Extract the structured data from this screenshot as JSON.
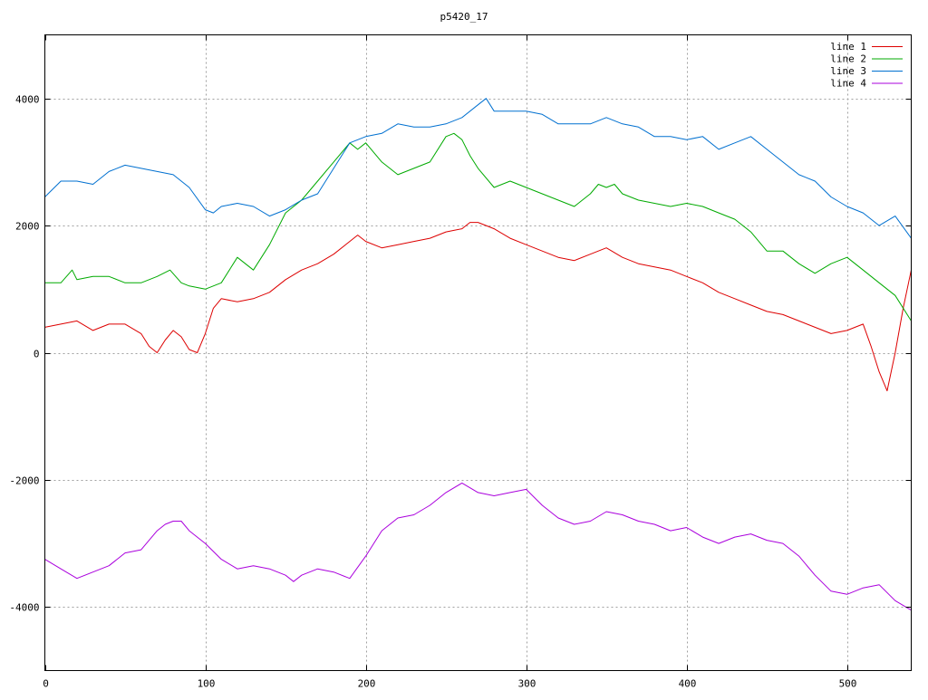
{
  "chart_data": {
    "type": "line",
    "title": "p5420_17",
    "xlabel": "",
    "ylabel": "",
    "xlim": [
      0,
      540
    ],
    "ylim": [
      -5000,
      5000
    ],
    "xticks": [
      0,
      100,
      200,
      300,
      400,
      500
    ],
    "yticks": [
      -4000,
      -2000,
      0,
      2000,
      4000
    ],
    "xtick_labels": [
      "0",
      "100",
      "200",
      "300",
      "400",
      "500"
    ],
    "ytick_labels": [
      "-4000",
      "-2000",
      "0",
      "2000",
      "4000"
    ],
    "grid": true,
    "legend": "top-right",
    "series": [
      {
        "name": "line 1",
        "color": "#dd0000",
        "x": [
          0,
          10,
          20,
          30,
          40,
          50,
          60,
          65,
          70,
          75,
          80,
          85,
          90,
          95,
          100,
          105,
          110,
          120,
          130,
          140,
          150,
          160,
          170,
          180,
          190,
          195,
          200,
          210,
          220,
          230,
          240,
          250,
          260,
          265,
          270,
          275,
          280,
          290,
          300,
          310,
          320,
          330,
          340,
          350,
          360,
          370,
          380,
          390,
          400,
          410,
          420,
          430,
          440,
          450,
          460,
          470,
          480,
          490,
          500,
          505,
          510,
          515,
          520,
          525,
          530,
          535,
          540
        ],
        "y": [
          400,
          450,
          500,
          350,
          450,
          450,
          300,
          100,
          0,
          200,
          350,
          250,
          50,
          0,
          300,
          700,
          850,
          800,
          850,
          950,
          1150,
          1300,
          1400,
          1550,
          1750,
          1850,
          1750,
          1650,
          1700,
          1750,
          1800,
          1900,
          1950,
          2050,
          2050,
          2000,
          1950,
          1800,
          1700,
          1600,
          1500,
          1450,
          1550,
          1650,
          1500,
          1400,
          1350,
          1300,
          1200,
          1100,
          950,
          850,
          750,
          650,
          600,
          500,
          400,
          300,
          350,
          400,
          450,
          100,
          -300,
          -600,
          0,
          700,
          1300
        ]
      },
      {
        "name": "line 2",
        "color": "#00aa00",
        "x": [
          0,
          10,
          17,
          20,
          30,
          40,
          50,
          60,
          70,
          78,
          85,
          90,
          100,
          110,
          120,
          130,
          140,
          150,
          160,
          170,
          180,
          190,
          195,
          200,
          210,
          220,
          230,
          240,
          250,
          255,
          260,
          265,
          270,
          280,
          290,
          300,
          310,
          320,
          330,
          340,
          345,
          350,
          355,
          360,
          370,
          380,
          390,
          400,
          410,
          420,
          430,
          440,
          450,
          460,
          470,
          480,
          490,
          500,
          510,
          520,
          530,
          540
        ],
        "y": [
          1100,
          1100,
          1300,
          1150,
          1200,
          1200,
          1100,
          1100,
          1200,
          1300,
          1100,
          1050,
          1000,
          1100,
          1500,
          1300,
          1700,
          2200,
          2400,
          2700,
          3000,
          3300,
          3200,
          3300,
          3000,
          2800,
          2900,
          3000,
          3400,
          3450,
          3350,
          3100,
          2900,
          2600,
          2700,
          2600,
          2500,
          2400,
          2300,
          2500,
          2650,
          2600,
          2650,
          2500,
          2400,
          2350,
          2300,
          2350,
          2300,
          2200,
          2100,
          1900,
          1600,
          1600,
          1400,
          1250,
          1400,
          1500,
          1300,
          1100,
          900,
          500
        ]
      },
      {
        "name": "line 3",
        "color": "#0070d0",
        "x": [
          0,
          10,
          20,
          30,
          40,
          50,
          60,
          70,
          80,
          90,
          100,
          105,
          110,
          120,
          130,
          140,
          150,
          160,
          170,
          180,
          190,
          200,
          210,
          220,
          230,
          240,
          250,
          260,
          270,
          275,
          280,
          290,
          300,
          310,
          320,
          330,
          340,
          350,
          360,
          370,
          380,
          390,
          400,
          410,
          420,
          430,
          440,
          450,
          460,
          470,
          480,
          490,
          500,
          510,
          520,
          530,
          540
        ],
        "y": [
          2450,
          2700,
          2700,
          2650,
          2850,
          2950,
          2900,
          2850,
          2800,
          2600,
          2250,
          2200,
          2300,
          2350,
          2300,
          2150,
          2250,
          2400,
          2500,
          2900,
          3300,
          3400,
          3450,
          3600,
          3550,
          3550,
          3600,
          3700,
          3900,
          4000,
          3800,
          3800,
          3800,
          3750,
          3600,
          3600,
          3600,
          3700,
          3600,
          3550,
          3400,
          3400,
          3350,
          3400,
          3200,
          3300,
          3400,
          3200,
          3000,
          2800,
          2700,
          2450,
          2300,
          2200,
          2000,
          2150,
          1800
        ]
      },
      {
        "name": "line 4",
        "color": "#aa00dd",
        "x": [
          0,
          10,
          20,
          30,
          40,
          50,
          60,
          70,
          75,
          80,
          85,
          90,
          100,
          110,
          120,
          130,
          140,
          150,
          155,
          160,
          170,
          180,
          190,
          200,
          210,
          220,
          230,
          240,
          250,
          260,
          270,
          280,
          290,
          300,
          310,
          320,
          330,
          340,
          350,
          360,
          370,
          380,
          390,
          400,
          410,
          420,
          430,
          440,
          450,
          460,
          470,
          480,
          490,
          500,
          510,
          520,
          530,
          540
        ],
        "y": [
          -3250,
          -3400,
          -3550,
          -3450,
          -3350,
          -3150,
          -3100,
          -2800,
          -2700,
          -2650,
          -2650,
          -2800,
          -3000,
          -3250,
          -3400,
          -3350,
          -3400,
          -3500,
          -3600,
          -3500,
          -3400,
          -3450,
          -3550,
          -3200,
          -2800,
          -2600,
          -2550,
          -2400,
          -2200,
          -2050,
          -2200,
          -2250,
          -2200,
          -2150,
          -2400,
          -2600,
          -2700,
          -2650,
          -2500,
          -2550,
          -2650,
          -2700,
          -2800,
          -2750,
          -2900,
          -3000,
          -2900,
          -2850,
          -2950,
          -3000,
          -3200,
          -3500,
          -3750,
          -3800,
          -3700,
          -3650,
          -3900,
          -4050
        ]
      }
    ]
  }
}
